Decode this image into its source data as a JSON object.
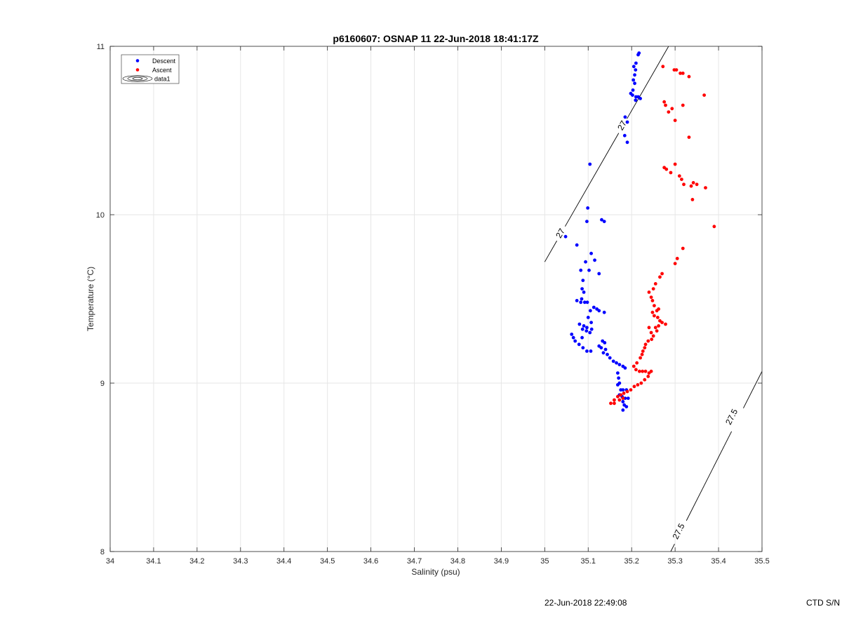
{
  "chart_data": {
    "type": "scatter",
    "title": "p6160607: OSNAP 11 22-Jun-2018 18:41:17Z",
    "xlabel": "Salinity (psu)",
    "ylabel": "Temperature (°C)",
    "xlim": [
      34,
      35.5
    ],
    "ylim": [
      8,
      11
    ],
    "x_ticks": [
      "34",
      "34.1",
      "34.2",
      "34.3",
      "34.4",
      "34.5",
      "34.6",
      "34.7",
      "34.8",
      "34.9",
      "35",
      "35.1",
      "35.2",
      "35.3",
      "35.4",
      "35.5"
    ],
    "y_ticks": [
      "8",
      "9",
      "10",
      "11"
    ],
    "grid": true,
    "legend_position": "top-left",
    "legend": [
      "Descent",
      "Ascent",
      "data1"
    ],
    "series": [
      {
        "name": "Descent",
        "color": "#0000ff",
        "points": [
          [
            35.217,
            10.96
          ],
          [
            35.215,
            10.95
          ],
          [
            35.21,
            10.9
          ],
          [
            35.205,
            10.88
          ],
          [
            35.209,
            10.86
          ],
          [
            35.207,
            10.83
          ],
          [
            35.204,
            10.8
          ],
          [
            35.207,
            10.78
          ],
          [
            35.203,
            10.74
          ],
          [
            35.198,
            10.72
          ],
          [
            35.202,
            10.71
          ],
          [
            35.21,
            10.7
          ],
          [
            35.215,
            10.7
          ],
          [
            35.22,
            10.69
          ],
          [
            35.209,
            10.68
          ],
          [
            35.185,
            10.58
          ],
          [
            35.19,
            10.55
          ],
          [
            35.184,
            10.47
          ],
          [
            35.19,
            10.43
          ],
          [
            35.104,
            10.3
          ],
          [
            35.099,
            10.04
          ],
          [
            35.097,
            9.96
          ],
          [
            35.131,
            9.97
          ],
          [
            35.137,
            9.96
          ],
          [
            35.048,
            9.87
          ],
          [
            35.074,
            9.82
          ],
          [
            35.107,
            9.77
          ],
          [
            35.115,
            9.73
          ],
          [
            35.094,
            9.72
          ],
          [
            35.083,
            9.67
          ],
          [
            35.102,
            9.67
          ],
          [
            35.125,
            9.65
          ],
          [
            35.088,
            9.61
          ],
          [
            35.086,
            9.56
          ],
          [
            35.09,
            9.54
          ],
          [
            35.085,
            9.5
          ],
          [
            35.074,
            9.49
          ],
          [
            35.083,
            9.48
          ],
          [
            35.092,
            9.48
          ],
          [
            35.098,
            9.48
          ],
          [
            35.113,
            9.45
          ],
          [
            35.12,
            9.44
          ],
          [
            35.105,
            9.43
          ],
          [
            35.125,
            9.43
          ],
          [
            35.137,
            9.42
          ],
          [
            35.1,
            9.39
          ],
          [
            35.107,
            9.36
          ],
          [
            35.08,
            9.35
          ],
          [
            35.09,
            9.34
          ],
          [
            35.097,
            9.33
          ],
          [
            35.108,
            9.32
          ],
          [
            35.087,
            9.32
          ],
          [
            35.096,
            9.31
          ],
          [
            35.104,
            9.3
          ],
          [
            35.062,
            9.29
          ],
          [
            35.066,
            9.27
          ],
          [
            35.086,
            9.27
          ],
          [
            35.07,
            9.25
          ],
          [
            35.079,
            9.23
          ],
          [
            35.088,
            9.21
          ],
          [
            35.097,
            9.19
          ],
          [
            35.106,
            9.19
          ],
          [
            35.133,
            9.25
          ],
          [
            35.138,
            9.24
          ],
          [
            35.125,
            9.22
          ],
          [
            35.13,
            9.21
          ],
          [
            35.14,
            9.2
          ],
          [
            35.135,
            9.18
          ],
          [
            35.144,
            9.17
          ],
          [
            35.15,
            9.15
          ],
          [
            35.158,
            9.13
          ],
          [
            35.165,
            9.12
          ],
          [
            35.172,
            9.11
          ],
          [
            35.18,
            9.1
          ],
          [
            35.185,
            9.09
          ],
          [
            35.168,
            9.06
          ],
          [
            35.17,
            9.03
          ],
          [
            35.172,
            9.0
          ],
          [
            35.168,
            8.99
          ],
          [
            35.175,
            8.96
          ],
          [
            35.18,
            8.96
          ],
          [
            35.188,
            8.96
          ],
          [
            35.172,
            8.93
          ],
          [
            35.178,
            8.92
          ],
          [
            35.185,
            8.91
          ],
          [
            35.192,
            8.91
          ],
          [
            35.18,
            8.89
          ],
          [
            35.183,
            8.87
          ],
          [
            35.188,
            8.86
          ],
          [
            35.18,
            8.84
          ]
        ]
      },
      {
        "name": "Ascent",
        "color": "#ff0000",
        "points": [
          [
            35.272,
            10.88
          ],
          [
            35.298,
            10.86
          ],
          [
            35.303,
            10.86
          ],
          [
            35.312,
            10.84
          ],
          [
            35.318,
            10.84
          ],
          [
            35.332,
            10.82
          ],
          [
            35.367,
            10.71
          ],
          [
            35.275,
            10.67
          ],
          [
            35.278,
            10.65
          ],
          [
            35.293,
            10.63
          ],
          [
            35.285,
            10.61
          ],
          [
            35.318,
            10.65
          ],
          [
            35.3,
            10.56
          ],
          [
            35.332,
            10.46
          ],
          [
            35.275,
            10.28
          ],
          [
            35.28,
            10.27
          ],
          [
            35.29,
            10.25
          ],
          [
            35.3,
            10.3
          ],
          [
            35.31,
            10.23
          ],
          [
            35.315,
            10.21
          ],
          [
            35.32,
            10.18
          ],
          [
            35.337,
            10.17
          ],
          [
            35.342,
            10.19
          ],
          [
            35.35,
            10.18
          ],
          [
            35.37,
            10.16
          ],
          [
            35.34,
            10.09
          ],
          [
            35.39,
            9.93
          ],
          [
            35.318,
            9.8
          ],
          [
            35.305,
            9.74
          ],
          [
            35.3,
            9.71
          ],
          [
            35.27,
            9.65
          ],
          [
            35.265,
            9.63
          ],
          [
            35.255,
            9.59
          ],
          [
            35.25,
            9.56
          ],
          [
            35.24,
            9.54
          ],
          [
            35.245,
            9.51
          ],
          [
            35.248,
            9.49
          ],
          [
            35.252,
            9.46
          ],
          [
            35.258,
            9.43
          ],
          [
            35.262,
            9.44
          ],
          [
            35.248,
            9.42
          ],
          [
            35.252,
            9.4
          ],
          [
            35.26,
            9.39
          ],
          [
            35.265,
            9.37
          ],
          [
            35.27,
            9.36
          ],
          [
            35.278,
            9.35
          ],
          [
            35.262,
            9.34
          ],
          [
            35.255,
            9.33
          ],
          [
            35.258,
            9.31
          ],
          [
            35.24,
            9.33
          ],
          [
            35.245,
            9.3
          ],
          [
            35.25,
            9.28
          ],
          [
            35.246,
            9.26
          ],
          [
            35.238,
            9.25
          ],
          [
            35.232,
            9.23
          ],
          [
            35.23,
            9.21
          ],
          [
            35.226,
            9.19
          ],
          [
            35.224,
            9.17
          ],
          [
            35.22,
            9.15
          ],
          [
            35.212,
            9.12
          ],
          [
            35.205,
            9.1
          ],
          [
            35.21,
            9.08
          ],
          [
            35.218,
            9.07
          ],
          [
            35.225,
            9.07
          ],
          [
            35.232,
            9.07
          ],
          [
            35.24,
            9.06
          ],
          [
            35.245,
            9.07
          ],
          [
            35.238,
            9.04
          ],
          [
            35.23,
            9.02
          ],
          [
            35.222,
            9.0
          ],
          [
            35.214,
            8.99
          ],
          [
            35.206,
            8.98
          ],
          [
            35.198,
            8.96
          ],
          [
            35.19,
            8.95
          ],
          [
            35.182,
            8.94
          ],
          [
            35.175,
            8.93
          ],
          [
            35.168,
            8.92
          ],
          [
            35.16,
            8.9
          ],
          [
            35.172,
            8.9
          ],
          [
            35.18,
            8.91
          ],
          [
            35.152,
            8.88
          ],
          [
            35.16,
            8.88
          ]
        ]
      }
    ],
    "contours": [
      {
        "name": "data1",
        "level": "27",
        "points": [
          [
            35.0,
            9.72
          ],
          [
            35.285,
            11.0
          ]
        ],
        "labels": [
          {
            "text": "27",
            "at": [
              35.036,
              9.89
            ]
          },
          {
            "text": "27",
            "at": [
              35.178,
              10.53
            ]
          }
        ]
      },
      {
        "name": "data1",
        "level": "27.5",
        "points": [
          [
            35.29,
            8.0
          ],
          [
            35.5,
            9.07
          ]
        ],
        "labels": [
          {
            "text": "27.5",
            "at": [
              35.308,
              8.12
            ]
          },
          {
            "text": "27.5",
            "at": [
              35.43,
              8.8
            ]
          }
        ]
      }
    ]
  },
  "footer": {
    "timestamp": "22-Jun-2018 22:49:08",
    "ctd_label": "CTD S/N"
  }
}
